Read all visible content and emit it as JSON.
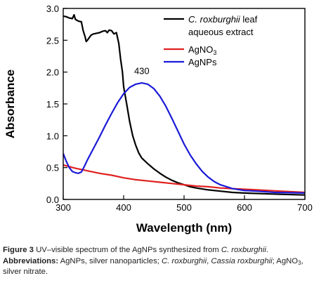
{
  "chart_data": {
    "type": "line",
    "xlabel": "Wavelength (nm)",
    "ylabel": "Absorbance",
    "xlim": [
      300,
      700
    ],
    "ylim": [
      0.0,
      3.0
    ],
    "xticks": [
      "300",
      "400",
      "500",
      "600",
      "700"
    ],
    "yticks": [
      "0.0",
      "0.5",
      "1.0",
      "1.5",
      "2.0",
      "2.5",
      "3.0"
    ],
    "grid": false,
    "legend_position": "top-right",
    "legend": {
      "extract_line1_italic": "C. roxburghii",
      "extract_line1_rest": " leaf",
      "extract_line2": "aqueous extract",
      "agno3_main": "AgNO",
      "agno3_sub": "3",
      "agnps": "AgNPs"
    },
    "annotations": [
      {
        "text": "430",
        "x": 430,
        "y": 1.97
      }
    ],
    "series": [
      {
        "key": "extract",
        "color": "#000000",
        "points": [
          [
            300,
            2.88
          ],
          [
            305,
            2.87
          ],
          [
            310,
            2.85
          ],
          [
            315,
            2.84
          ],
          [
            318,
            2.9
          ],
          [
            320,
            2.83
          ],
          [
            325,
            2.8
          ],
          [
            330,
            2.79
          ],
          [
            333,
            2.65
          ],
          [
            336,
            2.56
          ],
          [
            338,
            2.48
          ],
          [
            340,
            2.5
          ],
          [
            343,
            2.54
          ],
          [
            346,
            2.58
          ],
          [
            350,
            2.6
          ],
          [
            355,
            2.61
          ],
          [
            360,
            2.62
          ],
          [
            365,
            2.64
          ],
          [
            370,
            2.65
          ],
          [
            373,
            2.62
          ],
          [
            376,
            2.66
          ],
          [
            380,
            2.65
          ],
          [
            384,
            2.6
          ],
          [
            388,
            2.62
          ],
          [
            392,
            2.45
          ],
          [
            395,
            2.2
          ],
          [
            398,
            2.0
          ],
          [
            400,
            1.77
          ],
          [
            405,
            1.5
          ],
          [
            410,
            1.22
          ],
          [
            415,
            1.0
          ],
          [
            420,
            0.85
          ],
          [
            425,
            0.73
          ],
          [
            430,
            0.65
          ],
          [
            440,
            0.56
          ],
          [
            450,
            0.48
          ],
          [
            460,
            0.41
          ],
          [
            470,
            0.35
          ],
          [
            480,
            0.3
          ],
          [
            490,
            0.26
          ],
          [
            500,
            0.23
          ],
          [
            510,
            0.2
          ],
          [
            520,
            0.18
          ],
          [
            540,
            0.15
          ],
          [
            560,
            0.13
          ],
          [
            580,
            0.11
          ],
          [
            600,
            0.1
          ],
          [
            630,
            0.09
          ],
          [
            660,
            0.08
          ],
          [
            700,
            0.07
          ]
        ]
      },
      {
        "key": "agno3",
        "color": "#e02020",
        "points": [
          [
            300,
            0.54
          ],
          [
            320,
            0.49
          ],
          [
            340,
            0.45
          ],
          [
            360,
            0.41
          ],
          [
            380,
            0.38
          ],
          [
            400,
            0.34
          ],
          [
            420,
            0.31
          ],
          [
            440,
            0.29
          ],
          [
            460,
            0.27
          ],
          [
            480,
            0.25
          ],
          [
            500,
            0.23
          ],
          [
            520,
            0.21
          ],
          [
            540,
            0.2
          ],
          [
            560,
            0.18
          ],
          [
            580,
            0.17
          ],
          [
            600,
            0.16
          ],
          [
            620,
            0.15
          ],
          [
            640,
            0.14
          ],
          [
            660,
            0.13
          ],
          [
            680,
            0.12
          ],
          [
            700,
            0.11
          ]
        ]
      },
      {
        "key": "agnps",
        "color": "#1a1ad8",
        "points": [
          [
            300,
            0.72
          ],
          [
            305,
            0.6
          ],
          [
            310,
            0.5
          ],
          [
            315,
            0.44
          ],
          [
            320,
            0.42
          ],
          [
            325,
            0.41
          ],
          [
            330,
            0.43
          ],
          [
            335,
            0.52
          ],
          [
            340,
            0.62
          ],
          [
            350,
            0.8
          ],
          [
            360,
            0.98
          ],
          [
            370,
            1.17
          ],
          [
            380,
            1.35
          ],
          [
            390,
            1.52
          ],
          [
            400,
            1.66
          ],
          [
            410,
            1.76
          ],
          [
            420,
            1.81
          ],
          [
            430,
            1.83
          ],
          [
            440,
            1.81
          ],
          [
            450,
            1.74
          ],
          [
            460,
            1.62
          ],
          [
            470,
            1.46
          ],
          [
            480,
            1.27
          ],
          [
            490,
            1.07
          ],
          [
            500,
            0.87
          ],
          [
            510,
            0.7
          ],
          [
            520,
            0.56
          ],
          [
            530,
            0.44
          ],
          [
            540,
            0.35
          ],
          [
            550,
            0.28
          ],
          [
            560,
            0.23
          ],
          [
            580,
            0.17
          ],
          [
            600,
            0.14
          ],
          [
            620,
            0.13
          ],
          [
            650,
            0.11
          ],
          [
            700,
            0.1
          ]
        ]
      }
    ]
  },
  "caption": {
    "figure_label": "Figure 3",
    "figure_text_before": " UV–visible spectrum of the AgNPs synthesized from ",
    "figure_text_italic": "C. roxburghii",
    "figure_text_after": ".",
    "abbr_label": "Abbreviations:",
    "abbr_text_1": " AgNPs, silver nanoparticles; ",
    "abbr_italic_1": "C. roxburghii",
    "abbr_text_2": ", ",
    "abbr_italic_2": "Cassia roxburghii",
    "abbr_text_3": "; AgNO",
    "abbr_sub": "3",
    "abbr_text_4": ",",
    "abbr_text_5": "silver nitrate."
  }
}
